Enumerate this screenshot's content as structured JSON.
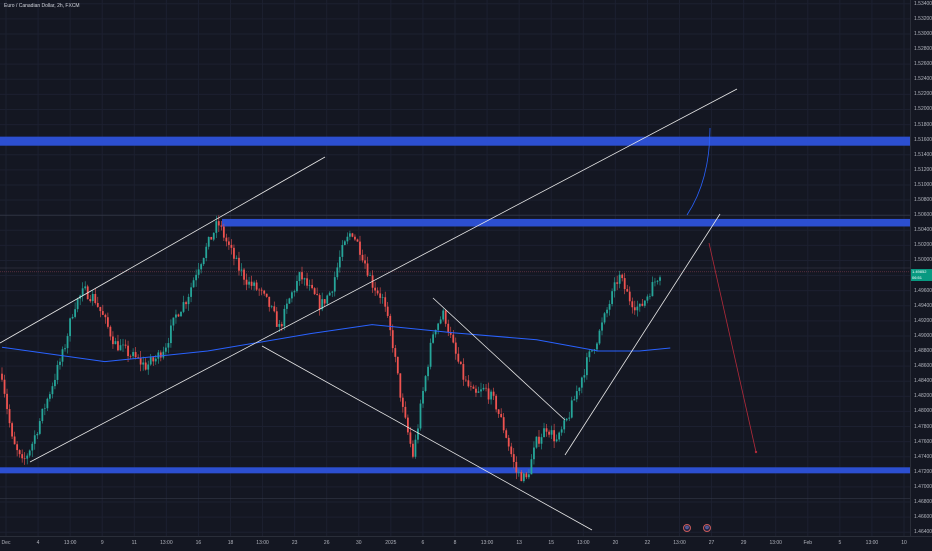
{
  "symbol": {
    "title": "Euro / Canadian Dollar, 2h, FXCM"
  },
  "colors": {
    "background": "#141722",
    "up": "#26a69a",
    "down": "#ef5350",
    "zone": "#2c4fd0",
    "moving_average": "#2962ff",
    "trendline": "#ffffff",
    "projection_up": "#2962ff",
    "projection_down": "#b22a3a",
    "price_label": "#089981"
  },
  "price_axis": {
    "ticks": [
      "1.53400",
      "1.53200",
      "1.53000",
      "1.52800",
      "1.52600",
      "1.52400",
      "1.52200",
      "1.52000",
      "1.51800",
      "1.51600",
      "1.51400",
      "1.51200",
      "1.51000",
      "1.50800",
      "1.50600",
      "1.50400",
      "1.50200",
      "1.50000",
      "1.49800",
      "1.49600",
      "1.49400",
      "1.49200",
      "1.49000",
      "1.48800",
      "1.48600",
      "1.48400",
      "1.48200",
      "1.48000",
      "1.47800",
      "1.47600",
      "1.47400",
      "1.47200",
      "1.47000",
      "1.46800",
      "1.46600",
      "1.46400"
    ],
    "current_price_label": "1.49852",
    "current_price_sub": "06:51"
  },
  "time_axis": {
    "labels": [
      "Dec",
      "4",
      "13:00",
      "9",
      "11",
      "13:00",
      "16",
      "18",
      "13:00",
      "23",
      "26",
      "30",
      "2025",
      "6",
      "8",
      "13:00",
      "13",
      "15",
      "13:00",
      "20",
      "22",
      "13:00",
      "27",
      "29",
      "13:00",
      "Feb",
      "5",
      "13:00",
      "10"
    ]
  },
  "events": [
    "event-1",
    "event-2"
  ],
  "chart_data": {
    "type": "candlestick",
    "title": "Euro / Canadian Dollar, 2h, FXCM",
    "x": [
      "Dec",
      "4",
      "13:00",
      "9",
      "11",
      "13:00",
      "16",
      "18",
      "13:00",
      "23",
      "26",
      "30",
      "2025",
      "6",
      "8",
      "13:00",
      "13",
      "15",
      "13:00",
      "20",
      "22",
      "13:00",
      "27",
      "29",
      "13:00",
      "Feb",
      "5",
      "13:00",
      "10"
    ],
    "ylim": [
      1.4635,
      1.5345
    ],
    "close_path": [
      [
        0,
        1.485
      ],
      [
        1,
        1.476
      ],
      [
        2,
        1.473
      ],
      [
        3,
        1.476
      ],
      [
        4,
        1.48
      ],
      [
        5,
        1.484
      ],
      [
        6,
        1.488
      ],
      [
        7,
        1.494
      ],
      [
        8,
        1.496
      ],
      [
        9,
        1.495
      ],
      [
        10,
        1.492
      ],
      [
        11,
        1.489
      ],
      [
        12,
        1.488
      ],
      [
        13,
        1.487
      ],
      [
        14,
        1.486
      ],
      [
        15,
        1.487
      ],
      [
        16,
        1.489
      ],
      [
        17,
        1.493
      ],
      [
        18,
        1.495
      ],
      [
        19,
        1.499
      ],
      [
        20,
        1.502
      ],
      [
        21,
        1.505
      ],
      [
        22,
        1.502
      ],
      [
        23,
        1.499
      ],
      [
        24,
        1.497
      ],
      [
        25,
        1.496
      ],
      [
        26,
        1.494
      ],
      [
        27,
        1.491
      ],
      [
        28,
        1.495
      ],
      [
        29,
        1.498
      ],
      [
        30,
        1.496
      ],
      [
        31,
        1.494
      ],
      [
        32,
        1.496
      ],
      [
        33,
        1.501
      ],
      [
        34,
        1.504
      ],
      [
        35,
        1.501
      ],
      [
        36,
        1.497
      ],
      [
        37,
        1.495
      ],
      [
        38,
        1.489
      ],
      [
        39,
        1.48
      ],
      [
        40,
        1.474
      ],
      [
        41,
        1.483
      ],
      [
        42,
        1.491
      ],
      [
        43,
        1.493
      ],
      [
        44,
        1.488
      ],
      [
        45,
        1.484
      ],
      [
        46,
        1.482
      ],
      [
        47,
        1.483
      ],
      [
        48,
        1.481
      ],
      [
        49,
        1.477
      ],
      [
        50,
        1.472
      ],
      [
        51,
        1.471
      ],
      [
        52,
        1.476
      ],
      [
        53,
        1.478
      ],
      [
        54,
        1.476
      ],
      [
        55,
        1.479
      ],
      [
        56,
        1.483
      ],
      [
        57,
        1.487
      ],
      [
        58,
        1.49
      ],
      [
        59,
        1.494
      ],
      [
        60,
        1.498
      ],
      [
        61,
        1.495
      ],
      [
        62,
        1.4935
      ],
      [
        63,
        1.496
      ],
      [
        64,
        1.4985
      ]
    ],
    "moving_average": [
      [
        0,
        1.4885
      ],
      [
        10,
        1.4866
      ],
      [
        20,
        1.488
      ],
      [
        30,
        1.4903
      ],
      [
        36,
        1.4915
      ],
      [
        44,
        1.4904
      ],
      [
        52,
        1.4895
      ],
      [
        58,
        1.488
      ],
      [
        62,
        1.488
      ],
      [
        65,
        1.4884
      ]
    ],
    "zones": [
      {
        "top": 1.5164,
        "bottom": 1.5152
      },
      {
        "top": 1.5055,
        "bottom": 1.5045
      },
      {
        "top": 1.4726,
        "bottom": 1.4718
      }
    ],
    "reference_lines": [
      1.506,
      1.499,
      1.4685
    ],
    "grid": true
  }
}
